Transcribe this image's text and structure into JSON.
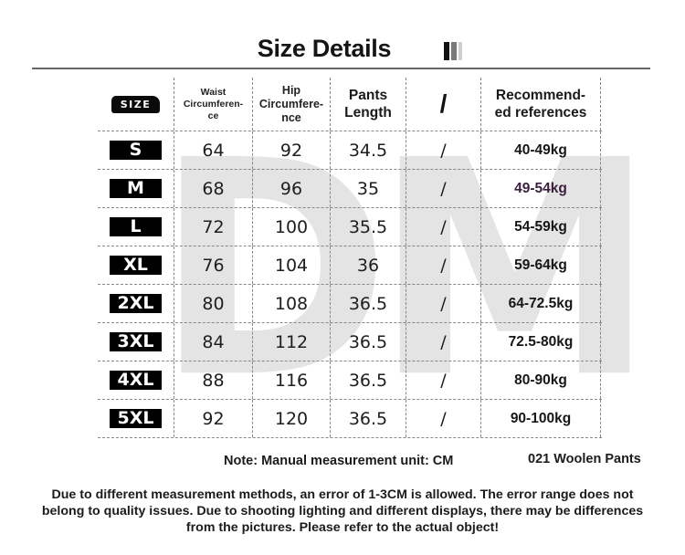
{
  "header": {
    "title": "Size Details",
    "bar_icon_colors": [
      "#111111",
      "#7a7a7a",
      "#cfcfcf"
    ]
  },
  "watermark": "DM",
  "table": {
    "columns": [
      "SIZE",
      "Waist Circumferen- ce",
      "Hip Circumfere- nce",
      "Pants Length",
      "/",
      "Recommend- ed references"
    ],
    "column_lines": {
      "waist": [
        "Waist",
        "Circumferen-",
        "ce"
      ],
      "hip": [
        "Hip",
        "Circumfere-",
        "nce"
      ],
      "length": [
        "Pants",
        "Length"
      ],
      "recommend": [
        "Recommend-",
        "ed references"
      ]
    },
    "rows": [
      {
        "size": "S",
        "waist": "64",
        "hip": "92",
        "length": "34.5",
        "slash": "/",
        "weight": "40-49kg"
      },
      {
        "size": "M",
        "waist": "68",
        "hip": "96",
        "length": "35",
        "slash": "/",
        "weight": "49-54kg"
      },
      {
        "size": "L",
        "waist": "72",
        "hip": "100",
        "length": "35.5",
        "slash": "/",
        "weight": "54-59kg"
      },
      {
        "size": "XL",
        "waist": "76",
        "hip": "104",
        "length": "36",
        "slash": "/",
        "weight": "59-64kg"
      },
      {
        "size": "2XL",
        "waist": "80",
        "hip": "108",
        "length": "36.5",
        "slash": "/",
        "weight": "64-72.5kg"
      },
      {
        "size": "3XL",
        "waist": "84",
        "hip": "112",
        "length": "36.5",
        "slash": "/",
        "weight": "72.5-80kg"
      },
      {
        "size": "4XL",
        "waist": "88",
        "hip": "116",
        "length": "36.5",
        "slash": "/",
        "weight": "80-90kg"
      },
      {
        "size": "5XL",
        "waist": "92",
        "hip": "120",
        "length": "36.5",
        "slash": "/",
        "weight": "90-100kg"
      }
    ],
    "highlight_color": "#3a1f3d"
  },
  "footer": {
    "note": "Note: Manual measurement unit: CM",
    "product": "021 Woolen Pants",
    "disclaimer": "Due to different measurement methods, an error of 1-3CM is allowed. The error range does not belong to quality issues. Due to shooting lighting and different displays, there may be differences from the pictures. Please refer to the actual object!"
  }
}
